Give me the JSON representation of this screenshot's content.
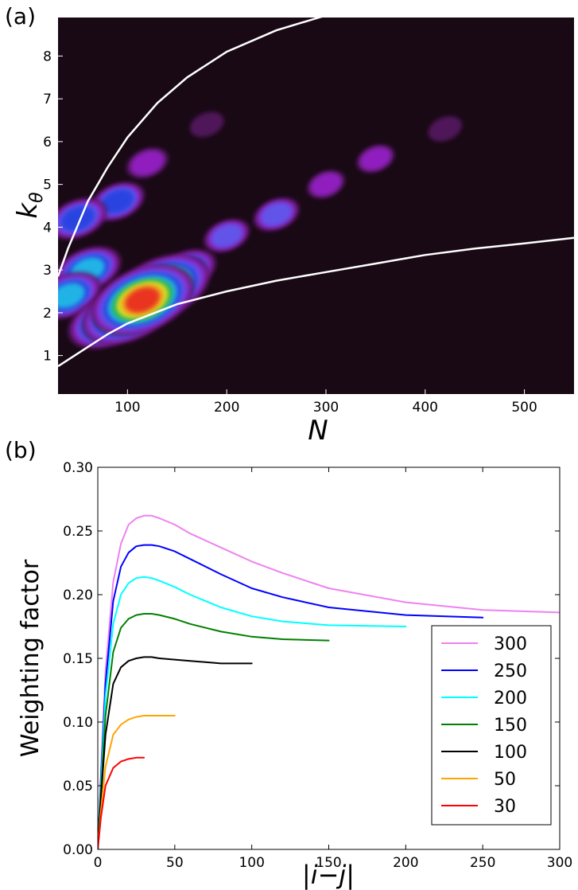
{
  "chart_data": [
    {
      "panel_label": "(a)",
      "type": "heatmap",
      "xlabel": "N",
      "ylabel": "k",
      "ylabel_subscript": "θ",
      "xlim": [
        30,
        550
      ],
      "ylim": [
        0.1,
        8.9
      ],
      "x_ticks": [
        100,
        200,
        300,
        400,
        500
      ],
      "y_ticks": [
        1,
        2,
        3,
        4,
        5,
        6,
        7,
        8
      ],
      "grid": false,
      "background_color": "#180914",
      "colormap": [
        "#180914",
        "#5a1a66",
        "#9b1fd0",
        "#5a5ef0",
        "#1d3fe0",
        "#1cc7e8",
        "#25b339",
        "#f5e61f",
        "#f5a41f",
        "#e82020"
      ],
      "density_peaks": [
        {
          "x": 115,
          "y": 2.3,
          "level": 1.0
        },
        {
          "x": 135,
          "y": 2.6,
          "level": 0.9
        },
        {
          "x": 100,
          "y": 2.0,
          "level": 0.85
        },
        {
          "x": 80,
          "y": 1.8,
          "level": 0.7
        },
        {
          "x": 60,
          "y": 3.0,
          "level": 0.55
        },
        {
          "x": 40,
          "y": 2.4,
          "level": 0.55
        },
        {
          "x": 160,
          "y": 3.0,
          "level": 0.45
        },
        {
          "x": 50,
          "y": 4.2,
          "level": 0.45
        },
        {
          "x": 90,
          "y": 4.6,
          "level": 0.4
        },
        {
          "x": 200,
          "y": 3.8,
          "level": 0.3
        },
        {
          "x": 250,
          "y": 4.3,
          "level": 0.3
        },
        {
          "x": 300,
          "y": 5.0,
          "level": 0.2
        },
        {
          "x": 350,
          "y": 5.6,
          "level": 0.2
        },
        {
          "x": 420,
          "y": 6.3,
          "level": 0.15
        },
        {
          "x": 120,
          "y": 5.5,
          "level": 0.25
        },
        {
          "x": 180,
          "y": 6.4,
          "level": 0.15
        }
      ],
      "curves": [
        {
          "name": "upper bound",
          "color": "#ffffff",
          "x": [
            30,
            40,
            60,
            80,
            100,
            130,
            160,
            200,
            250,
            300
          ],
          "y": [
            2.85,
            3.5,
            4.6,
            5.4,
            6.1,
            6.9,
            7.5,
            8.1,
            8.6,
            8.95
          ]
        },
        {
          "name": "lower bound",
          "color": "#ffffff",
          "x": [
            30,
            50,
            80,
            100,
            150,
            200,
            250,
            300,
            350,
            400,
            450,
            500,
            550
          ],
          "y": [
            0.75,
            1.05,
            1.5,
            1.75,
            2.2,
            2.5,
            2.75,
            2.95,
            3.15,
            3.35,
            3.5,
            3.62,
            3.75
          ]
        }
      ]
    },
    {
      "panel_label": "(b)",
      "type": "line",
      "xlabel": "|i−j|",
      "ylabel": "Weighting factor",
      "xlim": [
        0,
        300
      ],
      "ylim": [
        0.0,
        0.3
      ],
      "x_ticks": [
        0,
        50,
        100,
        150,
        200,
        250,
        300
      ],
      "y_ticks": [
        "0.00",
        "0.05",
        "0.10",
        "0.15",
        "0.20",
        "0.25",
        "0.30"
      ],
      "grid": false,
      "legend_position": "lower-right",
      "series": [
        {
          "name": "300",
          "color": "#ee82ee",
          "x": [
            0,
            2,
            5,
            10,
            15,
            20,
            25,
            30,
            35,
            40,
            50,
            60,
            80,
            100,
            120,
            150,
            200,
            250,
            300
          ],
          "y": [
            0.0,
            0.06,
            0.14,
            0.21,
            0.24,
            0.255,
            0.26,
            0.262,
            0.262,
            0.26,
            0.255,
            0.248,
            0.237,
            0.226,
            0.217,
            0.205,
            0.194,
            0.188,
            0.186
          ]
        },
        {
          "name": "250",
          "color": "#0000ff",
          "x": [
            0,
            2,
            5,
            10,
            15,
            20,
            25,
            30,
            35,
            40,
            50,
            60,
            80,
            100,
            120,
            150,
            200,
            250
          ],
          "y": [
            0.0,
            0.055,
            0.13,
            0.195,
            0.222,
            0.233,
            0.238,
            0.239,
            0.239,
            0.238,
            0.234,
            0.228,
            0.216,
            0.205,
            0.198,
            0.19,
            0.184,
            0.182
          ]
        },
        {
          "name": "200",
          "color": "#00ffff",
          "x": [
            0,
            2,
            5,
            10,
            15,
            20,
            25,
            30,
            35,
            40,
            50,
            60,
            80,
            100,
            120,
            150,
            200
          ],
          "y": [
            0.0,
            0.05,
            0.12,
            0.177,
            0.2,
            0.209,
            0.213,
            0.214,
            0.213,
            0.211,
            0.206,
            0.2,
            0.19,
            0.183,
            0.179,
            0.176,
            0.175
          ]
        },
        {
          "name": "150",
          "color": "#008000",
          "x": [
            0,
            2,
            5,
            10,
            15,
            20,
            25,
            30,
            35,
            40,
            50,
            60,
            80,
            100,
            120,
            150
          ],
          "y": [
            0.0,
            0.045,
            0.105,
            0.155,
            0.174,
            0.181,
            0.184,
            0.185,
            0.185,
            0.184,
            0.181,
            0.177,
            0.171,
            0.167,
            0.165,
            0.164
          ]
        },
        {
          "name": "100",
          "color": "#000000",
          "x": [
            0,
            2,
            5,
            10,
            15,
            20,
            25,
            30,
            35,
            40,
            50,
            60,
            80,
            100
          ],
          "y": [
            0.0,
            0.04,
            0.09,
            0.13,
            0.143,
            0.148,
            0.15,
            0.151,
            0.151,
            0.15,
            0.149,
            0.148,
            0.146,
            0.146
          ]
        },
        {
          "name": "50",
          "color": "#ffa500",
          "x": [
            0,
            2,
            5,
            10,
            15,
            20,
            25,
            30,
            35,
            40,
            50
          ],
          "y": [
            0.0,
            0.03,
            0.065,
            0.09,
            0.098,
            0.102,
            0.104,
            0.105,
            0.105,
            0.105,
            0.105
          ]
        },
        {
          "name": "30",
          "color": "#ff0000",
          "x": [
            0,
            2,
            5,
            10,
            15,
            20,
            25,
            30
          ],
          "y": [
            0.0,
            0.025,
            0.05,
            0.064,
            0.069,
            0.071,
            0.072,
            0.072
          ]
        }
      ]
    }
  ]
}
